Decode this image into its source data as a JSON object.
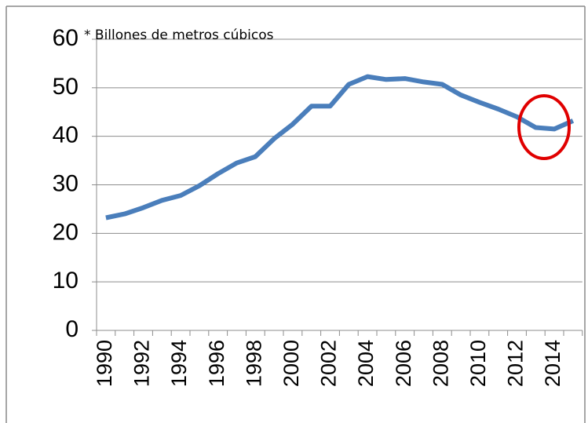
{
  "chart_data": {
    "type": "line",
    "annotation": "* Billones de metros cúbicos",
    "categories": [
      "1990",
      null,
      "1992",
      null,
      "1994",
      null,
      "1996",
      null,
      "1998",
      null,
      "2000",
      null,
      "2002",
      null,
      "2004",
      null,
      "2006",
      null,
      "2008",
      null,
      "2010",
      null,
      "2012",
      null,
      "2014",
      null
    ],
    "series": [
      {
        "color": "#4a7ebb",
        "values": [
          23.2,
          24,
          25.3,
          26.8,
          27.8,
          29.8,
          32.3,
          34.5,
          35.8,
          39.5,
          42.5,
          46.2,
          46.2,
          50.7,
          52.3,
          51.7,
          51.9,
          51.2,
          50.7,
          48.5,
          47,
          45.6,
          44,
          41.8,
          41.5,
          43.2
        ]
      }
    ],
    "ylim": [
      0,
      60
    ],
    "yticks": [
      0,
      10,
      20,
      30,
      40,
      50,
      60
    ],
    "grid": true
  }
}
